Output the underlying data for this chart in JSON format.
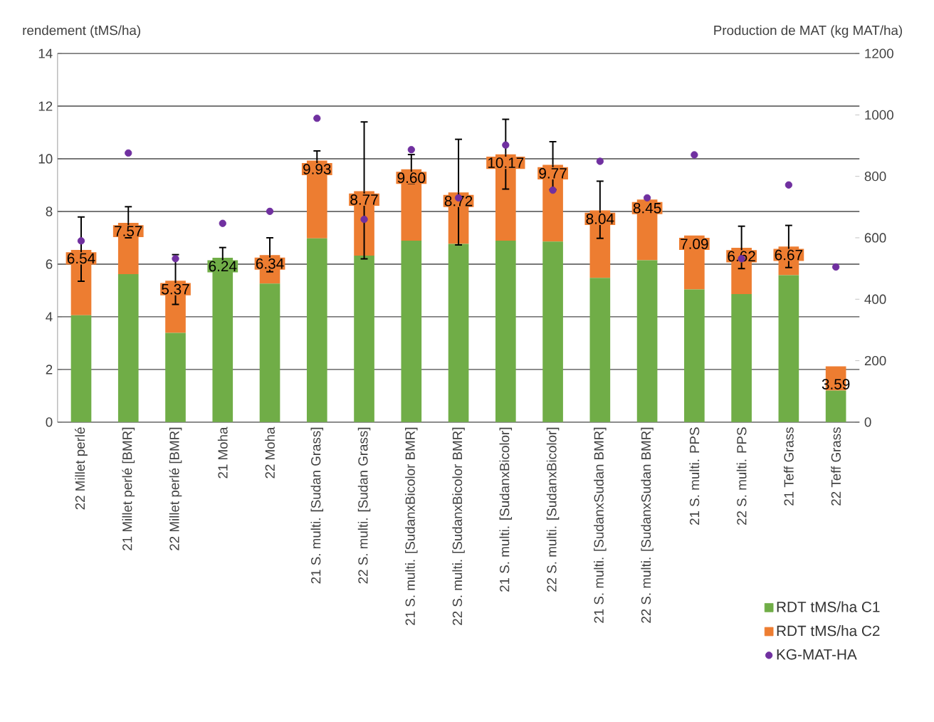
{
  "chart_data": {
    "type": "bar",
    "stacked": true,
    "ylabel": "rendement (tMS/ha)",
    "y2label": "Production de MAT (kg MAT/ha)",
    "categories": [
      "22 Millet perlé",
      "21 Millet perlé [BMR]",
      "22 Millet perlé [BMR]",
      "21 Moha",
      "22 Moha",
      "21 S. multi. [Sudan Grass]",
      "22 S. multi. [Sudan Grass]",
      "21 S. multi. [SudanxBicolor BMR]",
      "22 S. multi. [SudanxBicolor BMR]",
      "21 S. multi. [SudanxBicolor]",
      "22 S. multi. [SudanxBicolor]",
      "21 S. multi. [SudanxSudan BMR]",
      "22 S. multi. [SudanxSudan BMR]",
      "21 S. multi. PPS",
      "22 S. multi. PPS",
      "21 Teff Grass",
      "22 Teff Grass"
    ],
    "series": [
      {
        "name": "RDT tMS/ha C1",
        "color": "#70ad47",
        "values": [
          4.06,
          5.62,
          3.39,
          6.24,
          5.26,
          6.98,
          6.32,
          6.89,
          6.77,
          6.89,
          6.86,
          5.48,
          6.15,
          5.04,
          4.86,
          5.58,
          1.2
        ]
      },
      {
        "name": "RDT tMS/ha C2",
        "color": "#ed7d31",
        "values": [
          2.48,
          1.95,
          1.98,
          0,
          1.08,
          2.95,
          2.45,
          2.71,
          1.95,
          3.28,
          2.91,
          2.56,
          2.3,
          2.05,
          1.76,
          1.09,
          0.92
        ],
        "errors": [
          [
            5.35,
            7.79
          ],
          [
            7.0,
            8.18
          ],
          [
            4.47,
            6.36
          ],
          [
            5.87,
            6.63
          ],
          [
            5.71,
            7.0
          ],
          [
            9.59,
            10.3
          ],
          [
            6.2,
            11.4
          ],
          [
            9.06,
            10.16
          ],
          [
            6.73,
            10.74
          ],
          [
            8.85,
            11.5
          ],
          [
            8.83,
            10.65
          ],
          [
            6.98,
            9.15
          ],
          null,
          null,
          [
            5.83,
            7.44
          ],
          [
            5.87,
            7.47
          ],
          null
        ]
      },
      {
        "name": "KG-MAT-HA",
        "color": "#7030a0",
        "type": "scatter",
        "axis": "y2",
        "values": [
          590,
          876,
          532,
          647,
          686,
          989,
          660,
          887,
          730,
          902,
          755,
          849,
          730,
          870,
          532,
          772,
          505
        ]
      }
    ],
    "totals": [
      "6.54",
      "7.57",
      "5.37",
      "6.24",
      "6.34",
      "9.93",
      "8.77",
      "9.60",
      "8.72",
      "10.17",
      "9.77",
      "8.04",
      "8.45",
      "7.09",
      "6.62",
      "6.67",
      null
    ],
    "annotations": [
      {
        "text": "3.59",
        "x": "22 Teff Grass",
        "y": 1.2
      }
    ],
    "ylim": [
      0,
      14
    ],
    "yticks": [
      0,
      2,
      4,
      6,
      8,
      10,
      12,
      14
    ],
    "y2lim": [
      0,
      1200
    ],
    "y2ticks": [
      0,
      200,
      400,
      600,
      800,
      1000,
      1200
    ],
    "grid": "y",
    "legend": "bottom right"
  }
}
